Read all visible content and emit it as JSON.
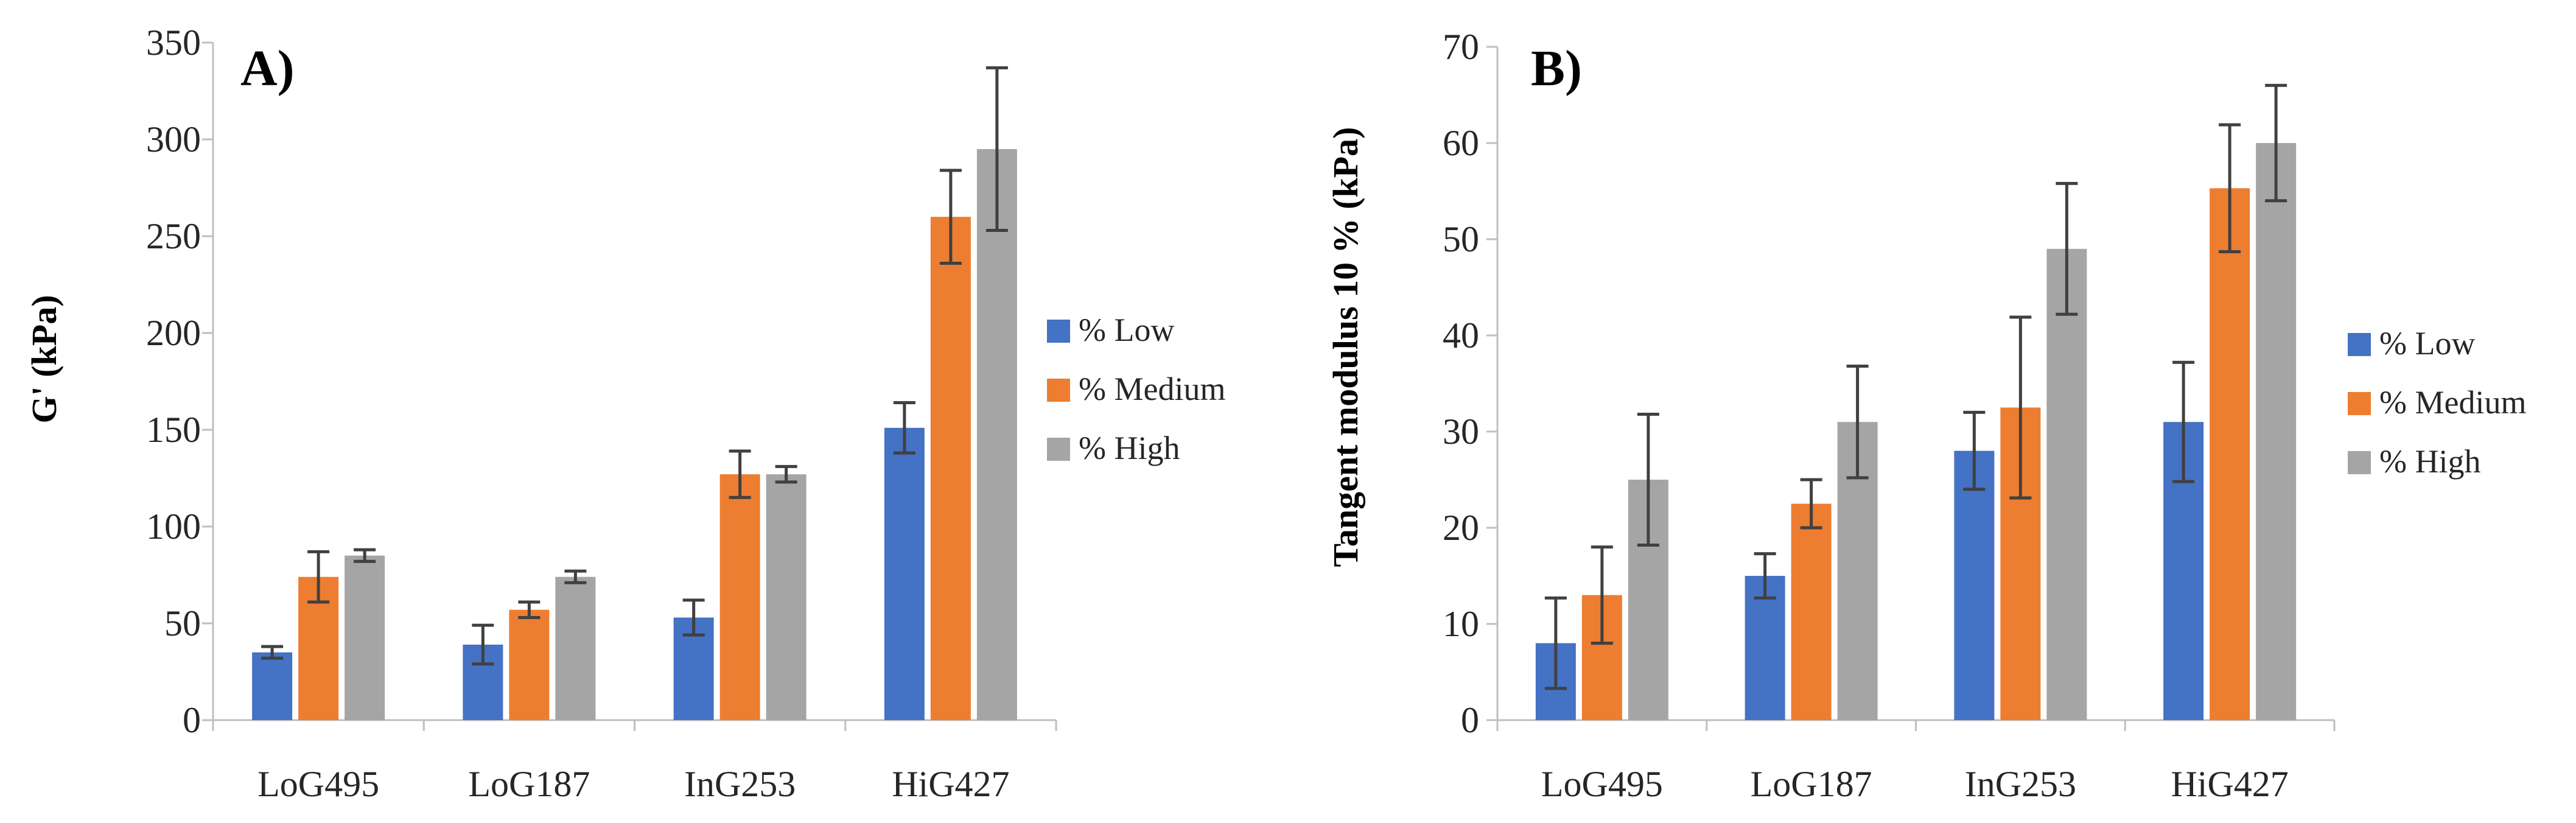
{
  "colors": {
    "low": "#4472C4",
    "medium": "#ED7D31",
    "high": "#A5A5A5",
    "axis": "#BFBFBF",
    "err": "#404040"
  },
  "chart_data": [
    {
      "type": "bar",
      "panel_label": "A)",
      "ylabel": "G' (kPa)",
      "xlabel": "",
      "ylim": [
        0,
        350
      ],
      "yticks": [
        "0",
        "50",
        "100",
        "150",
        "200",
        "250",
        "300",
        "350"
      ],
      "ytick_values": [
        0,
        50,
        100,
        150,
        200,
        250,
        300,
        350
      ],
      "categories": [
        "LoG495",
        "LoG187",
        "InG253",
        "HiG427"
      ],
      "legend": [
        "% Low",
        "% Medium",
        "% High"
      ],
      "legend_position": "right",
      "series": [
        {
          "name": "% Low",
          "values": [
            35,
            39,
            53,
            151
          ],
          "errors": [
            3,
            10,
            9,
            13
          ]
        },
        {
          "name": "% Medium",
          "values": [
            74,
            57,
            127,
            260
          ],
          "errors": [
            13,
            4,
            12,
            24
          ]
        },
        {
          "name": "% High",
          "values": [
            85,
            74,
            127,
            295
          ],
          "errors": [
            3,
            3,
            4,
            42
          ]
        }
      ]
    },
    {
      "type": "bar",
      "panel_label": "B)",
      "ylabel": "Tangent modulus 10 % (kPa)",
      "xlabel": "",
      "ylim": [
        0,
        70
      ],
      "yticks": [
        "0",
        "10",
        "20",
        "30",
        "40",
        "50",
        "60",
        "70"
      ],
      "ytick_values": [
        0,
        10,
        20,
        30,
        40,
        50,
        60,
        70
      ],
      "categories": [
        "LoG495",
        "LoG187",
        "InG253",
        "HiG427"
      ],
      "legend": [
        "% Low",
        "% Medium",
        "% High"
      ],
      "legend_position": "right",
      "series": [
        {
          "name": "% Low",
          "values": [
            8,
            15,
            28,
            31
          ],
          "errors": [
            4.7,
            2.3,
            4,
            6.2
          ]
        },
        {
          "name": "% Medium",
          "values": [
            13,
            22.5,
            32.5,
            55.3
          ],
          "errors": [
            5,
            2.5,
            9.4,
            6.6
          ]
        },
        {
          "name": "% High",
          "values": [
            25,
            31,
            49,
            60
          ],
          "errors": [
            6.8,
            5.8,
            6.8,
            6
          ]
        }
      ]
    }
  ]
}
